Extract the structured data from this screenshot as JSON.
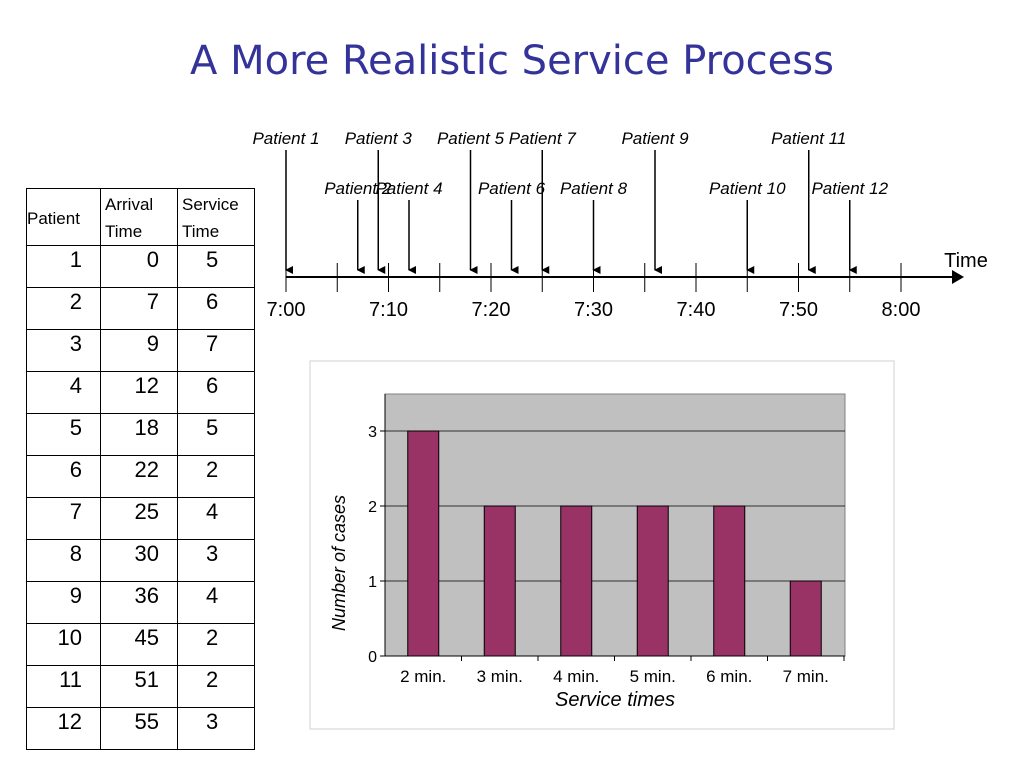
{
  "title": "A More Realistic Service Process",
  "table": {
    "headers": [
      "Patient",
      "Arrival\nTime",
      "Service\nTime"
    ],
    "rows": [
      [
        "1",
        "0",
        "5"
      ],
      [
        "2",
        "7",
        "6"
      ],
      [
        "3",
        "9",
        "7"
      ],
      [
        "4",
        "12",
        "6"
      ],
      [
        "5",
        "18",
        "5"
      ],
      [
        "6",
        "22",
        "2"
      ],
      [
        "7",
        "25",
        "4"
      ],
      [
        "8",
        "30",
        "3"
      ],
      [
        "9",
        "36",
        "4"
      ],
      [
        "10",
        "45",
        "2"
      ],
      [
        "11",
        "51",
        "2"
      ],
      [
        "12",
        "55",
        "3"
      ]
    ]
  },
  "timeline": {
    "axis_label": "Time",
    "tick_labels": [
      "7:00",
      "7:10",
      "7:20",
      "7:30",
      "7:40",
      "7:50",
      "8:00"
    ],
    "arrivals": [
      {
        "label": "Patient 1",
        "minute": 0,
        "row": "upper"
      },
      {
        "label": "Patient 2",
        "minute": 7,
        "row": "lower"
      },
      {
        "label": "Patient 3",
        "minute": 9,
        "row": "upper"
      },
      {
        "label": "Patient 4",
        "minute": 12,
        "row": "lower"
      },
      {
        "label": "Patient 5",
        "minute": 18,
        "row": "upper"
      },
      {
        "label": "Patient 6",
        "minute": 22,
        "row": "lower"
      },
      {
        "label": "Patient 7",
        "minute": 25,
        "row": "upper"
      },
      {
        "label": "Patient 8",
        "minute": 30,
        "row": "lower"
      },
      {
        "label": "Patient 9",
        "minute": 36,
        "row": "upper"
      },
      {
        "label": "Patient 10",
        "minute": 45,
        "row": "lower"
      },
      {
        "label": "Patient 11",
        "minute": 51,
        "row": "upper"
      },
      {
        "label": "Patient 12",
        "minute": 55,
        "row": "lower"
      }
    ]
  },
  "chart_data": {
    "type": "bar",
    "categories": [
      "2 min.",
      "3 min.",
      "4 min.",
      "5 min.",
      "6 min.",
      "7 min."
    ],
    "values": [
      3,
      2,
      2,
      2,
      2,
      1
    ],
    "xlabel": "Service times",
    "ylabel": "Number of cases",
    "ylim": [
      0,
      3
    ],
    "yticks": [
      0,
      1,
      2,
      3
    ],
    "grid": true,
    "colors": {
      "bar": "#993366",
      "plot_bg": "#c0c0c0",
      "frame": "#808080"
    }
  }
}
